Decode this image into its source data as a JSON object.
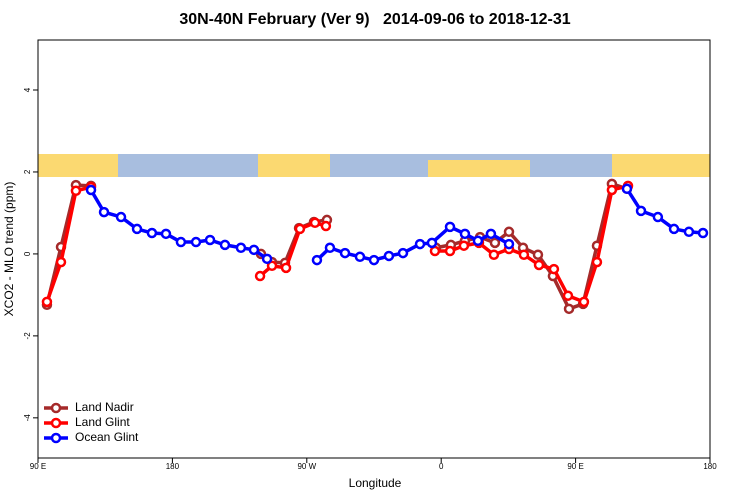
{
  "chart_data": {
    "type": "line",
    "title": "30N-40N February (Ver 9)   2014-09-06 to 2018-12-31",
    "x_label": "Longitude",
    "y_label": "XCO2 - MLO trend (ppm)",
    "xlim": [
      90,
      540
    ],
    "ylim": [
      -4.98,
      5.22
    ],
    "xticks": [
      {
        "value": 90,
        "label": "90 E"
      },
      180,
      {
        "value": 270,
        "label": "90 W"
      },
      {
        "value": 360,
        "label": "0"
      },
      {
        "value": 450,
        "label": "90 E"
      },
      {
        "value": 540,
        "label": "180"
      }
    ],
    "yticks": [
      -4,
      -2,
      0,
      2,
      4
    ],
    "legend": "bottom-left",
    "series": [
      {
        "name": "Land Nadir",
        "color": "#a52a2a",
        "x": [
          96.0,
          105.4,
          115.4,
          125.5,
          null,
          239.3,
          246.7,
          255.4,
          264.8,
          274.8,
          283.5,
          null,
          356.5,
          366.5,
          375.9,
          386.0,
          396.0,
          405.4,
          414.8,
          424.8,
          434.8,
          445.6,
          455.0,
          464.3,
          474.3,
          484.4
        ],
        "values": [
          -1.24,
          0.17,
          1.68,
          1.66,
          null,
          0.0,
          -0.2,
          -0.22,
          0.63,
          0.78,
          0.83,
          null,
          0.15,
          0.22,
          0.32,
          0.41,
          0.27,
          0.54,
          0.15,
          -0.02,
          -0.54,
          -1.34,
          -1.22,
          0.2,
          1.71,
          1.59
        ]
      },
      {
        "name": "Land Glint",
        "color": "#ff0000",
        "x": [
          96.0,
          105.4,
          115.4,
          125.5,
          null,
          238.7,
          246.7,
          256.1,
          265.4,
          275.5,
          282.8,
          null,
          355.8,
          365.9,
          375.2,
          385.3,
          395.3,
          405.4,
          415.4,
          425.5,
          435.5,
          444.9,
          455.6,
          464.3,
          474.3,
          485.1
        ],
        "values": [
          -1.17,
          -0.2,
          1.54,
          1.63,
          null,
          -0.54,
          -0.29,
          -0.34,
          0.61,
          0.76,
          0.68,
          null,
          0.07,
          0.07,
          0.2,
          0.27,
          -0.02,
          0.12,
          -0.02,
          -0.27,
          -0.37,
          -1.02,
          -1.17,
          -0.2,
          1.56,
          1.66
        ]
      },
      {
        "name": "Ocean Glint",
        "color": "#0000ff",
        "x": [
          125.5,
          134.2,
          145.6,
          156.3,
          166.3,
          175.7,
          185.7,
          195.8,
          205.2,
          215.2,
          225.9,
          234.6,
          243.4,
          null,
          276.8,
          285.5,
          295.6,
          305.6,
          315.0,
          325.0,
          334.4,
          345.8,
          353.8,
          365.9,
          375.9,
          384.6,
          393.3,
          405.4,
          null,
          484.4,
          493.8,
          505.1,
          515.9,
          525.9,
          535.3
        ],
        "values": [
          1.56,
          1.02,
          0.9,
          0.61,
          0.51,
          0.49,
          0.29,
          0.29,
          0.34,
          0.22,
          0.15,
          0.1,
          -0.12,
          null,
          -0.15,
          0.15,
          0.02,
          -0.07,
          -0.15,
          -0.05,
          0.02,
          0.24,
          0.27,
          0.66,
          0.49,
          0.32,
          0.49,
          0.24,
          null,
          1.59,
          1.05,
          0.9,
          0.61,
          0.54,
          0.51
        ]
      }
    ]
  }
}
